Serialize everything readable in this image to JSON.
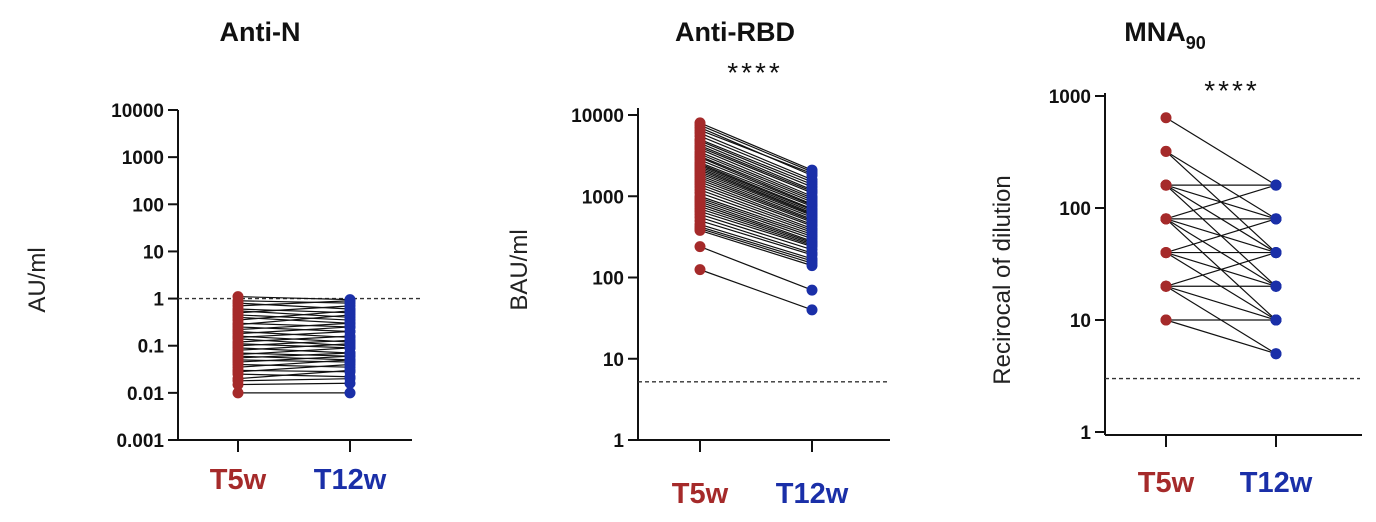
{
  "colors": {
    "t5w": "#a52a2a",
    "t12w": "#1a2fa8",
    "line": "#111111"
  },
  "chart_data": [
    {
      "type": "line",
      "subtype": "paired-dot",
      "title": "Anti-N",
      "title_sub": "",
      "ylabel": "AU/ml",
      "yscale": "log",
      "ylim": [
        0.001,
        10000
      ],
      "yticks": [
        0.001,
        0.01,
        0.1,
        1,
        10,
        100,
        1000,
        10000
      ],
      "ytick_labels": [
        "0.001",
        "0.01",
        "0.1",
        "1",
        "10",
        "100",
        "1000",
        "10000"
      ],
      "categories": [
        "T5w",
        "T12w"
      ],
      "threshold": 1,
      "significance": "",
      "pairs": [
        [
          1.1,
          0.95
        ],
        [
          0.9,
          0.8
        ],
        [
          0.8,
          0.6
        ],
        [
          0.7,
          0.9
        ],
        [
          0.6,
          0.5
        ],
        [
          0.55,
          0.4
        ],
        [
          0.5,
          0.7
        ],
        [
          0.45,
          0.35
        ],
        [
          0.4,
          0.3
        ],
        [
          0.35,
          0.55
        ],
        [
          0.3,
          0.25
        ],
        [
          0.28,
          0.45
        ],
        [
          0.25,
          0.2
        ],
        [
          0.22,
          0.3
        ],
        [
          0.2,
          0.15
        ],
        [
          0.18,
          0.25
        ],
        [
          0.16,
          0.12
        ],
        [
          0.15,
          0.2
        ],
        [
          0.14,
          0.1
        ],
        [
          0.12,
          0.16
        ],
        [
          0.11,
          0.09
        ],
        [
          0.1,
          0.13
        ],
        [
          0.09,
          0.07
        ],
        [
          0.08,
          0.11
        ],
        [
          0.07,
          0.06
        ],
        [
          0.065,
          0.09
        ],
        [
          0.06,
          0.05
        ],
        [
          0.055,
          0.07
        ],
        [
          0.05,
          0.045
        ],
        [
          0.045,
          0.06
        ],
        [
          0.04,
          0.035
        ],
        [
          0.035,
          0.05
        ],
        [
          0.03,
          0.028
        ],
        [
          0.028,
          0.04
        ],
        [
          0.025,
          0.022
        ],
        [
          0.02,
          0.03
        ],
        [
          0.018,
          0.02
        ],
        [
          0.015,
          0.016
        ],
        [
          0.01,
          0.01
        ]
      ]
    },
    {
      "type": "line",
      "subtype": "paired-dot",
      "title": "Anti-RBD",
      "title_sub": "",
      "ylabel": "BAU/ml",
      "yscale": "log",
      "ylim": [
        1,
        10000
      ],
      "yticks": [
        1,
        10,
        100,
        1000,
        10000
      ],
      "ytick_labels": [
        "1",
        "10",
        "100",
        "1000",
        "10000"
      ],
      "categories": [
        "T5w",
        "T12w"
      ],
      "threshold": 5.2,
      "significance": "****",
      "pairs": [
        [
          8000,
          2100
        ],
        [
          7500,
          2000
        ],
        [
          7000,
          1800
        ],
        [
          6500,
          1900
        ],
        [
          6000,
          1600
        ],
        [
          5500,
          1500
        ],
        [
          5000,
          1400
        ],
        [
          4800,
          1300
        ],
        [
          4500,
          1200
        ],
        [
          4200,
          1150
        ],
        [
          4000,
          1100
        ],
        [
          3800,
          1000
        ],
        [
          3500,
          950
        ],
        [
          3300,
          900
        ],
        [
          3100,
          850
        ],
        [
          3000,
          800
        ],
        [
          2800,
          780
        ],
        [
          2600,
          750
        ],
        [
          2500,
          700
        ],
        [
          2400,
          680
        ],
        [
          2300,
          650
        ],
        [
          2200,
          620
        ],
        [
          2100,
          600
        ],
        [
          2000,
          580
        ],
        [
          1900,
          550
        ],
        [
          1800,
          520
        ],
        [
          1700,
          500
        ],
        [
          1600,
          480
        ],
        [
          1500,
          450
        ],
        [
          1400,
          430
        ],
        [
          1300,
          400
        ],
        [
          1200,
          380
        ],
        [
          1100,
          360
        ],
        [
          1000,
          340
        ],
        [
          950,
          320
        ],
        [
          900,
          300
        ],
        [
          850,
          280
        ],
        [
          800,
          270
        ],
        [
          750,
          260
        ],
        [
          700,
          250
        ],
        [
          650,
          240
        ],
        [
          600,
          220
        ],
        [
          550,
          200
        ],
        [
          500,
          190
        ],
        [
          450,
          170
        ],
        [
          420,
          160
        ],
        [
          400,
          150
        ],
        [
          380,
          140
        ],
        [
          240,
          70
        ],
        [
          125,
          40
        ]
      ]
    },
    {
      "type": "line",
      "subtype": "paired-dot",
      "title": "MNA",
      "title_sub": "90",
      "ylabel": "Recirocal of dilution",
      "yscale": "log",
      "ylim": [
        1,
        1000
      ],
      "yticks": [
        1,
        10,
        100,
        1000
      ],
      "ytick_labels": [
        "1",
        "10",
        "100",
        "1000"
      ],
      "categories": [
        "T5w",
        "T12w"
      ],
      "threshold": 3,
      "significance": "****",
      "pairs": [
        [
          640,
          160
        ],
        [
          320,
          80
        ],
        [
          320,
          40
        ],
        [
          160,
          160
        ],
        [
          160,
          80
        ],
        [
          160,
          40
        ],
        [
          160,
          20
        ],
        [
          80,
          160
        ],
        [
          80,
          80
        ],
        [
          80,
          40
        ],
        [
          80,
          20
        ],
        [
          80,
          10
        ],
        [
          40,
          80
        ],
        [
          40,
          40
        ],
        [
          40,
          20
        ],
        [
          40,
          10
        ],
        [
          20,
          40
        ],
        [
          20,
          20
        ],
        [
          20,
          10
        ],
        [
          20,
          5
        ],
        [
          10,
          10
        ],
        [
          10,
          5
        ]
      ]
    }
  ]
}
